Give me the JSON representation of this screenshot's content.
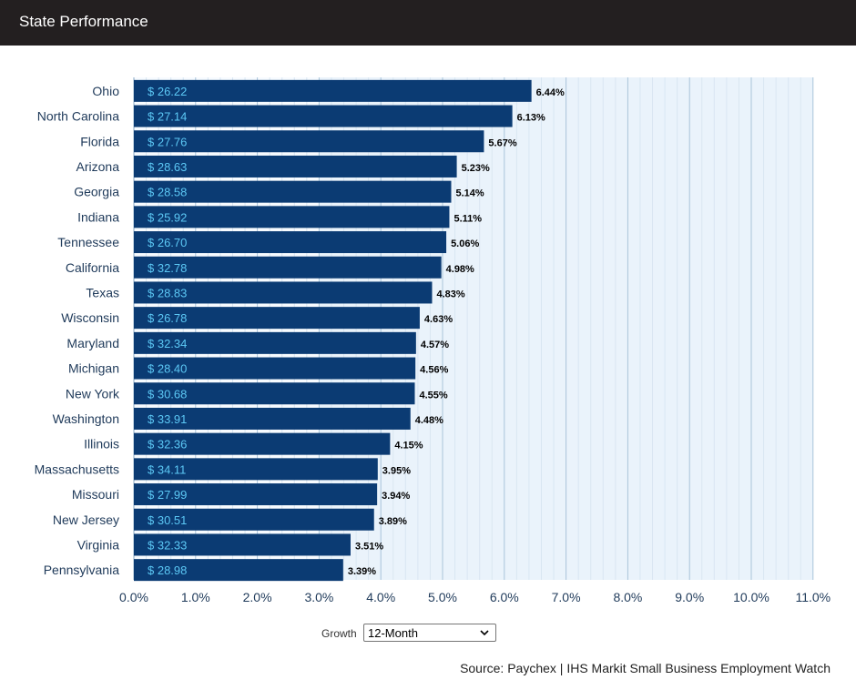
{
  "header": {
    "title": "State Performance"
  },
  "controls": {
    "growth_label": "Growth",
    "growth_value": "12-Month"
  },
  "source": "Source: Paychex | IHS Markit Small Business Employment Watch",
  "colors": {
    "bar": "#0b3b73",
    "value_text": "#5cc8f5",
    "band_light": "#eaf3fb",
    "band_alt": "#f7fbff",
    "header_bg": "#231f20"
  },
  "chart_data": {
    "type": "bar",
    "orientation": "horizontal",
    "categories": [
      "Ohio",
      "North Carolina",
      "Florida",
      "Arizona",
      "Georgia",
      "Indiana",
      "Tennessee",
      "California",
      "Texas",
      "Wisconsin",
      "Maryland",
      "Michigan",
      "New York",
      "Washington",
      "Illinois",
      "Massachusetts",
      "Missouri",
      "New Jersey",
      "Virginia",
      "Pennsylvania"
    ],
    "values": [
      6.44,
      6.13,
      5.67,
      5.23,
      5.14,
      5.11,
      5.06,
      4.98,
      4.83,
      4.63,
      4.57,
      4.56,
      4.55,
      4.48,
      4.15,
      3.95,
      3.94,
      3.89,
      3.51,
      3.39
    ],
    "value_labels": [
      "6.44%",
      "6.13%",
      "5.67%",
      "5.23%",
      "5.14%",
      "5.11%",
      "5.06%",
      "4.98%",
      "4.83%",
      "4.63%",
      "4.57%",
      "4.56%",
      "4.55%",
      "4.48%",
      "4.15%",
      "3.95%",
      "3.94%",
      "3.89%",
      "3.51%",
      "3.39%"
    ],
    "wage_labels": [
      "$ 26.22",
      "$ 27.14",
      "$ 27.76",
      "$ 28.63",
      "$ 28.58",
      "$ 25.92",
      "$ 26.70",
      "$ 32.78",
      "$ 28.83",
      "$ 26.78",
      "$ 32.34",
      "$ 28.40",
      "$ 30.68",
      "$ 33.91",
      "$ 32.36",
      "$ 34.11",
      "$ 27.99",
      "$ 30.51",
      "$ 32.33",
      "$ 28.98"
    ],
    "xlim": [
      0,
      11
    ],
    "x_ticks": [
      0,
      1,
      2,
      3,
      4,
      5,
      6,
      7,
      8,
      9,
      10,
      11
    ],
    "x_tick_labels": [
      "0.0%",
      "1.0%",
      "2.0%",
      "3.0%",
      "4.0%",
      "5.0%",
      "6.0%",
      "7.0%",
      "8.0%",
      "9.0%",
      "10.0%",
      "11.0%"
    ],
    "grid": true
  }
}
